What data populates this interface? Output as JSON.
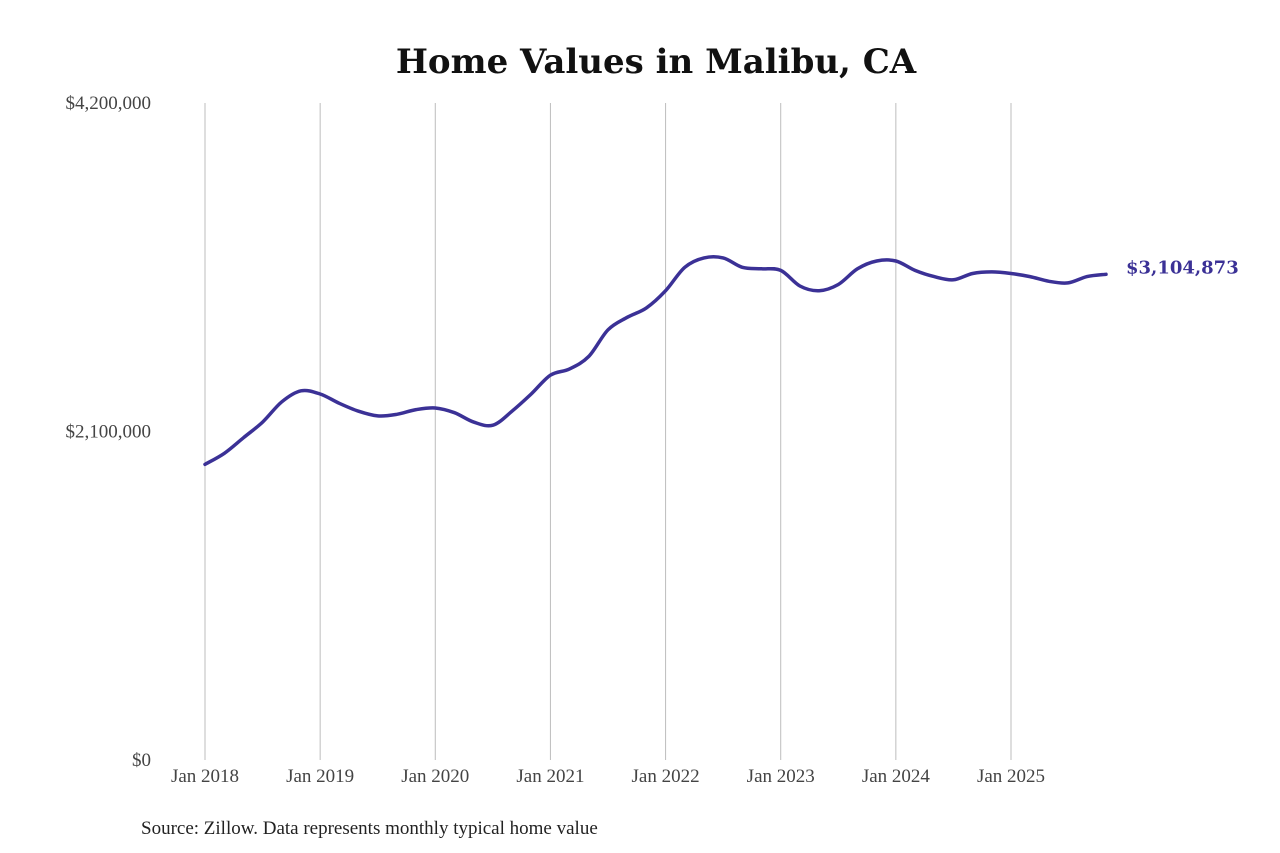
{
  "chart_data": {
    "type": "line",
    "title": "Home Values in Malibu, CA",
    "source": "Source: Zillow. Data represents monthly typical home value",
    "y_ticks": [
      {
        "value": 0,
        "label": "$0"
      },
      {
        "value": 2100000,
        "label": "$2,100,000"
      },
      {
        "value": 4200000,
        "label": "$4,200,000"
      }
    ],
    "ylim": [
      0,
      4200000
    ],
    "x_ticks": [
      {
        "value": "2018-01",
        "label": "Jan 2018"
      },
      {
        "value": "2019-01",
        "label": "Jan 2019"
      },
      {
        "value": "2020-01",
        "label": "Jan 2020"
      },
      {
        "value": "2021-01",
        "label": "Jan 2021"
      },
      {
        "value": "2022-01",
        "label": "Jan 2022"
      },
      {
        "value": "2023-01",
        "label": "Jan 2023"
      },
      {
        "value": "2024-01",
        "label": "Jan 2024"
      },
      {
        "value": "2025-01",
        "label": "Jan 2025"
      }
    ],
    "xlim": [
      "2018-01",
      "2025-11"
    ],
    "grid": "vertical lines at x ticks",
    "series": [
      {
        "color": "#3b3196",
        "end_label": "$3,104,873",
        "points": [
          [
            "2018-01",
            1890000
          ],
          [
            "2018-03",
            1960000
          ],
          [
            "2018-05",
            2060000
          ],
          [
            "2018-07",
            2160000
          ],
          [
            "2018-09",
            2290000
          ],
          [
            "2018-11",
            2360000
          ],
          [
            "2019-01",
            2340000
          ],
          [
            "2019-03",
            2280000
          ],
          [
            "2019-05",
            2230000
          ],
          [
            "2019-07",
            2200000
          ],
          [
            "2019-09",
            2210000
          ],
          [
            "2019-11",
            2240000
          ],
          [
            "2020-01",
            2250000
          ],
          [
            "2020-03",
            2220000
          ],
          [
            "2020-05",
            2160000
          ],
          [
            "2020-07",
            2140000
          ],
          [
            "2020-09",
            2230000
          ],
          [
            "2020-11",
            2340000
          ],
          [
            "2021-01",
            2460000
          ],
          [
            "2021-03",
            2500000
          ],
          [
            "2021-05",
            2580000
          ],
          [
            "2021-07",
            2750000
          ],
          [
            "2021-09",
            2830000
          ],
          [
            "2021-11",
            2890000
          ],
          [
            "2022-01",
            3000000
          ],
          [
            "2022-03",
            3150000
          ],
          [
            "2022-05",
            3210000
          ],
          [
            "2022-07",
            3210000
          ],
          [
            "2022-09",
            3150000
          ],
          [
            "2022-11",
            3140000
          ],
          [
            "2023-01",
            3130000
          ],
          [
            "2023-03",
            3030000
          ],
          [
            "2023-05",
            3000000
          ],
          [
            "2023-07",
            3040000
          ],
          [
            "2023-09",
            3140000
          ],
          [
            "2023-11",
            3190000
          ],
          [
            "2024-01",
            3190000
          ],
          [
            "2024-03",
            3130000
          ],
          [
            "2024-05",
            3090000
          ],
          [
            "2024-07",
            3070000
          ],
          [
            "2024-09",
            3110000
          ],
          [
            "2024-11",
            3120000
          ],
          [
            "2025-01",
            3110000
          ],
          [
            "2025-03",
            3090000
          ],
          [
            "2025-05",
            3060000
          ],
          [
            "2025-07",
            3050000
          ],
          [
            "2025-09",
            3090000
          ],
          [
            "2025-11",
            3104873
          ]
        ]
      }
    ]
  }
}
